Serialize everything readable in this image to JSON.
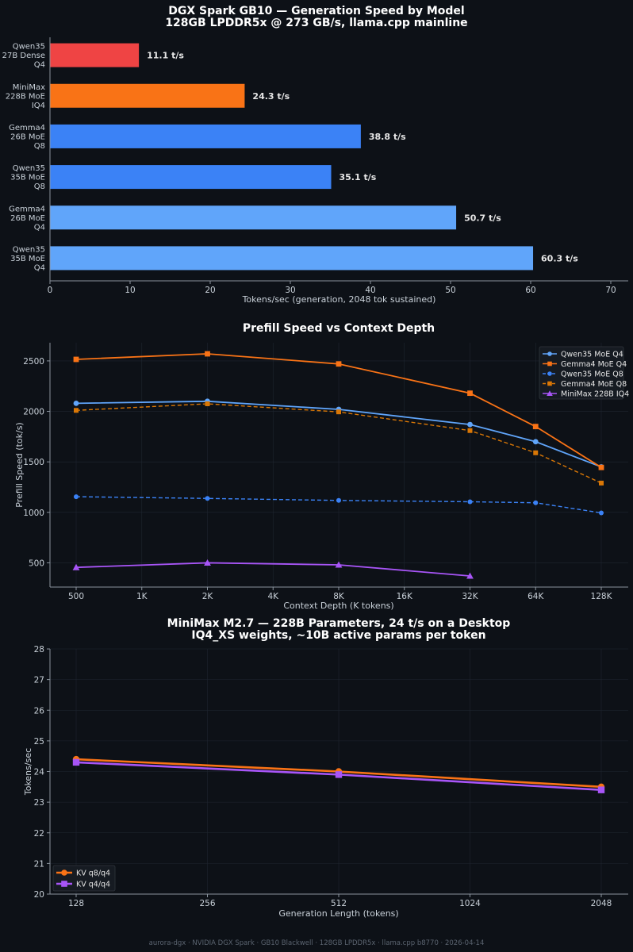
{
  "colors": {
    "background": "#0d1117",
    "red": "#ef4444",
    "orange": "#f97316",
    "blue": "#3b82f6",
    "lightblue": "#60a5fa",
    "purple": "#a855f7",
    "grid": "#1f2630",
    "axis": "#8b949e"
  },
  "footer": "aurora-dgx · NVIDIA DGX Spark · GB10 Blackwell · 128GB LPDDR5x · llama.cpp b8770 · 2026-04-14",
  "chart_data": [
    {
      "type": "bar",
      "orientation": "horizontal",
      "title": "DGX Spark GB10 — Generation Speed by Model",
      "subtitle": "128GB LPDDR5x @ 273 GB/s, llama.cpp mainline",
      "xlabel": "Tokens/sec (generation, 2048 tok sustained)",
      "xlim": [
        0,
        70
      ],
      "xticks": [
        "0",
        "10",
        "20",
        "30",
        "40",
        "50",
        "60",
        "70"
      ],
      "categories": [
        [
          "Qwen35",
          "27B Dense",
          "Q4"
        ],
        [
          "MiniMax",
          "228B MoE",
          "IQ4"
        ],
        [
          "Gemma4",
          "26B MoE",
          "Q8"
        ],
        [
          "Qwen35",
          "35B MoE",
          "Q8"
        ],
        [
          "Gemma4",
          "26B MoE",
          "Q4"
        ],
        [
          "Qwen35",
          "35B MoE",
          "Q4"
        ]
      ],
      "values": [
        11.1,
        24.3,
        38.8,
        35.1,
        50.7,
        60.3
      ],
      "value_labels": [
        "11.1 t/s",
        "24.3 t/s",
        "38.8 t/s",
        "35.1 t/s",
        "50.7 t/s",
        "60.3 t/s"
      ],
      "bar_colors": [
        "#ef4444",
        "#f97316",
        "#3b82f6",
        "#3b82f6",
        "#60a5fa",
        "#60a5fa"
      ]
    },
    {
      "type": "line",
      "title": "Prefill Speed vs Context Depth",
      "xlabel": "Context Depth (K tokens)",
      "ylabel": "Prefill Speed (tok/s)",
      "x_scale": "log2",
      "x_ticks": [
        "500",
        "1K",
        "2K",
        "4K",
        "8K",
        "16K",
        "32K",
        "64K",
        "128K"
      ],
      "ylim": [
        260,
        2680
      ],
      "y_ticks": [
        "500",
        "1000",
        "1500",
        "2000",
        "2500"
      ],
      "legend_position": "top-right",
      "series": [
        {
          "name": "Qwen35 MoE Q4",
          "color": "#60a5fa",
          "style": "solid",
          "marker": "circle",
          "x": [
            "500",
            "2K",
            "8K",
            "32K",
            "64K",
            "128K"
          ],
          "values": [
            2080,
            2100,
            2020,
            1870,
            1700,
            1450
          ]
        },
        {
          "name": "Gemma4 MoE Q4",
          "color": "#f97316",
          "style": "solid",
          "marker": "square",
          "x": [
            "500",
            "2K",
            "8K",
            "32K",
            "64K",
            "128K"
          ],
          "values": [
            2515,
            2570,
            2470,
            2180,
            1850,
            1445
          ]
        },
        {
          "name": "Qwen35 MoE Q8",
          "color": "#3b82f6",
          "style": "dashed",
          "marker": "circle",
          "x": [
            "500",
            "2K",
            "8K",
            "32K",
            "64K",
            "128K"
          ],
          "values": [
            1155,
            1138,
            1118,
            1105,
            1095,
            995
          ]
        },
        {
          "name": "Gemma4 MoE Q8",
          "color": "#d97706",
          "style": "dashed",
          "marker": "square",
          "x": [
            "500",
            "2K",
            "8K",
            "32K",
            "64K",
            "128K"
          ],
          "values": [
            2010,
            2075,
            1995,
            1810,
            1590,
            1290
          ]
        },
        {
          "name": "MiniMax 228B IQ4",
          "color": "#a855f7",
          "style": "solid",
          "marker": "triangle",
          "x": [
            "500",
            "2K",
            "8K",
            "32K"
          ],
          "values": [
            455,
            500,
            480,
            370
          ]
        }
      ]
    },
    {
      "type": "line",
      "title": "MiniMax M2.7 — 228B Parameters, 24 t/s on a Desktop",
      "subtitle": "IQ4_XS weights, ~10B active params per token",
      "xlabel": "Generation Length (tokens)",
      "ylabel": "Tokens/sec",
      "x_scale": "log2",
      "x_ticks": [
        "128",
        "256",
        "512",
        "1024",
        "2048"
      ],
      "ylim": [
        20,
        28
      ],
      "y_ticks": [
        "20",
        "21",
        "22",
        "23",
        "24",
        "25",
        "26",
        "27",
        "28"
      ],
      "legend_position": "bottom-left",
      "series": [
        {
          "name": "KV q8/q4",
          "color": "#f97316",
          "marker": "circle",
          "x": [
            128,
            512,
            2048
          ],
          "values": [
            24.4,
            24.0,
            23.5
          ]
        },
        {
          "name": "KV q4/q4",
          "color": "#a855f7",
          "marker": "square",
          "x": [
            128,
            512,
            2048
          ],
          "values": [
            24.3,
            23.9,
            23.4
          ]
        }
      ]
    }
  ]
}
